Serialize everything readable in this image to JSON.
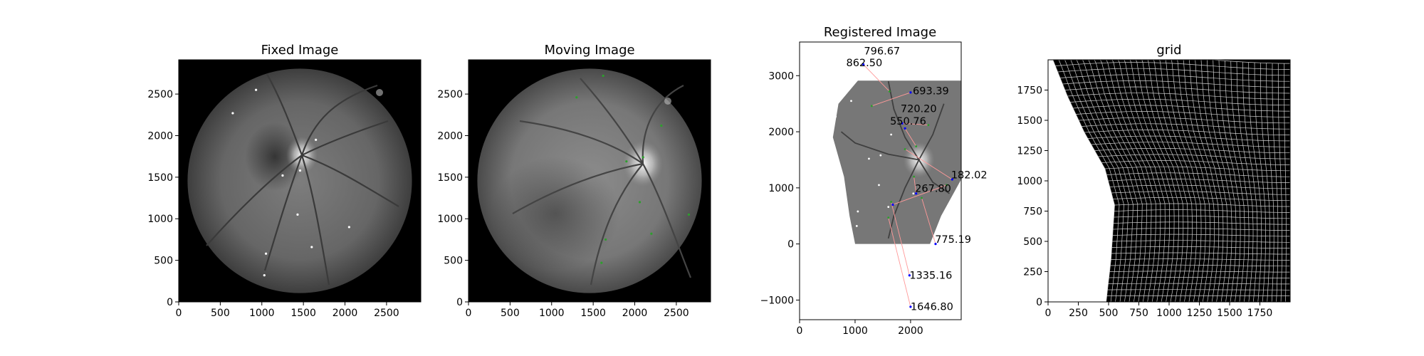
{
  "figure": {
    "panels": 4
  },
  "chart_data": [
    {
      "type": "image",
      "title": "Fixed Image",
      "xlim": [
        0,
        2912
      ],
      "ylim": [
        2912,
        0
      ],
      "xticks": [
        0,
        500,
        1000,
        1500,
        2000,
        2500
      ],
      "yticks": [
        0,
        500,
        1000,
        1500,
        2000,
        2500
      ],
      "fundus": {
        "cx": 1456,
        "cy": 1456,
        "r": 1350,
        "optic_disc": [
          1480,
          1150
        ],
        "fovea": [
          1150,
          1150
        ]
      },
      "points_color": "#ffffff",
      "points": [
        [
          1030,
          320
        ],
        [
          1050,
          580
        ],
        [
          1600,
          660
        ],
        [
          1430,
          1050
        ],
        [
          2050,
          900
        ],
        [
          1250,
          1520
        ],
        [
          1460,
          1580
        ],
        [
          1650,
          1950
        ],
        [
          650,
          2270
        ],
        [
          930,
          2550
        ]
      ]
    },
    {
      "type": "image",
      "title": "Moving Image",
      "xlim": [
        0,
        2912
      ],
      "ylim": [
        2912,
        0
      ],
      "xticks": [
        0,
        500,
        1000,
        1500,
        2000,
        2500
      ],
      "yticks": [
        0,
        500,
        1000,
        1500,
        2000,
        2500
      ],
      "fundus": {
        "cx": 1456,
        "cy": 1456,
        "r": 1350,
        "optic_disc": [
          2100,
          1250
        ]
      },
      "points_color": "#2ca02c",
      "points": [
        [
          1600,
          470
        ],
        [
          1650,
          750
        ],
        [
          2200,
          820
        ],
        [
          2650,
          1050
        ],
        [
          2060,
          1200
        ],
        [
          1900,
          1690
        ],
        [
          2100,
          1740
        ],
        [
          2320,
          2120
        ],
        [
          1300,
          2460
        ],
        [
          1620,
          2720
        ]
      ]
    },
    {
      "type": "image",
      "title": "Registered Image",
      "xlim": [
        0,
        2912
      ],
      "ylim": [
        3600,
        -1350
      ],
      "xticks": [
        0,
        1000,
        2000
      ],
      "yticks": [
        -1000,
        0,
        1000,
        2000,
        3000
      ],
      "image_extent_y": [
        0,
        2912
      ],
      "fixed_points": [
        [
          1030,
          320
        ],
        [
          1050,
          580
        ],
        [
          1600,
          660
        ],
        [
          1430,
          1050
        ],
        [
          2050,
          900
        ],
        [
          1250,
          1520
        ],
        [
          1460,
          1580
        ],
        [
          1650,
          1950
        ],
        [
          650,
          2270
        ],
        [
          930,
          2550
        ]
      ],
      "warped_points": [
        [
          2000,
          -1120
        ],
        [
          1980,
          -560
        ],
        [
          2450,
          0
        ],
        [
          1680,
          700
        ],
        [
          2100,
          900
        ],
        [
          2750,
          1150
        ],
        [
          1900,
          2060
        ],
        [
          1850,
          2150
        ],
        [
          2000,
          2700
        ],
        [
          1150,
          3200
        ]
      ],
      "target_points": [
        [
          1600,
          470
        ],
        [
          1650,
          750
        ],
        [
          2200,
          820
        ],
        [
          2650,
          1050
        ],
        [
          2060,
          1200
        ],
        [
          1900,
          1690
        ],
        [
          2100,
          1740
        ],
        [
          2320,
          2120
        ],
        [
          1300,
          2460
        ],
        [
          1620,
          2720
        ]
      ],
      "labels": [
        {
          "text": "1646.80",
          "x": 2000,
          "y": -1180
        },
        {
          "text": "1335.16",
          "x": 1980,
          "y": -620
        },
        {
          "text": "775.19",
          "x": 2440,
          "y": 20
        },
        {
          "text": "267.80",
          "x": 2080,
          "y": 930
        },
        {
          "text": "182.02",
          "x": 2730,
          "y": 1170
        },
        {
          "text": "550.76",
          "x": 1630,
          "y": 2130
        },
        {
          "text": "720.20",
          "x": 1820,
          "y": 2350
        },
        {
          "text": "693.39",
          "x": 2040,
          "y": 2670
        },
        {
          "text": "862.50",
          "x": 840,
          "y": 3170
        },
        {
          "text": "796.67",
          "x": 1160,
          "y": 3380
        }
      ],
      "error_point_color": "#0000ff",
      "line_color": "#ff9999"
    },
    {
      "type": "grid",
      "title": "grid",
      "xlim": [
        0,
        2000
      ],
      "ylim": [
        2000,
        0
      ],
      "xticks": [
        0,
        250,
        500,
        750,
        1000,
        1250,
        1500,
        1750
      ],
      "yticks": [
        0,
        250,
        500,
        750,
        1000,
        1250,
        1500,
        1750
      ],
      "grid_lines": 40,
      "left_boundary": [
        [
          480,
          0
        ],
        [
          520,
          350
        ],
        [
          550,
          800
        ],
        [
          470,
          1100
        ],
        [
          300,
          1400
        ],
        [
          160,
          1700
        ],
        [
          40,
          2000
        ]
      ]
    }
  ]
}
